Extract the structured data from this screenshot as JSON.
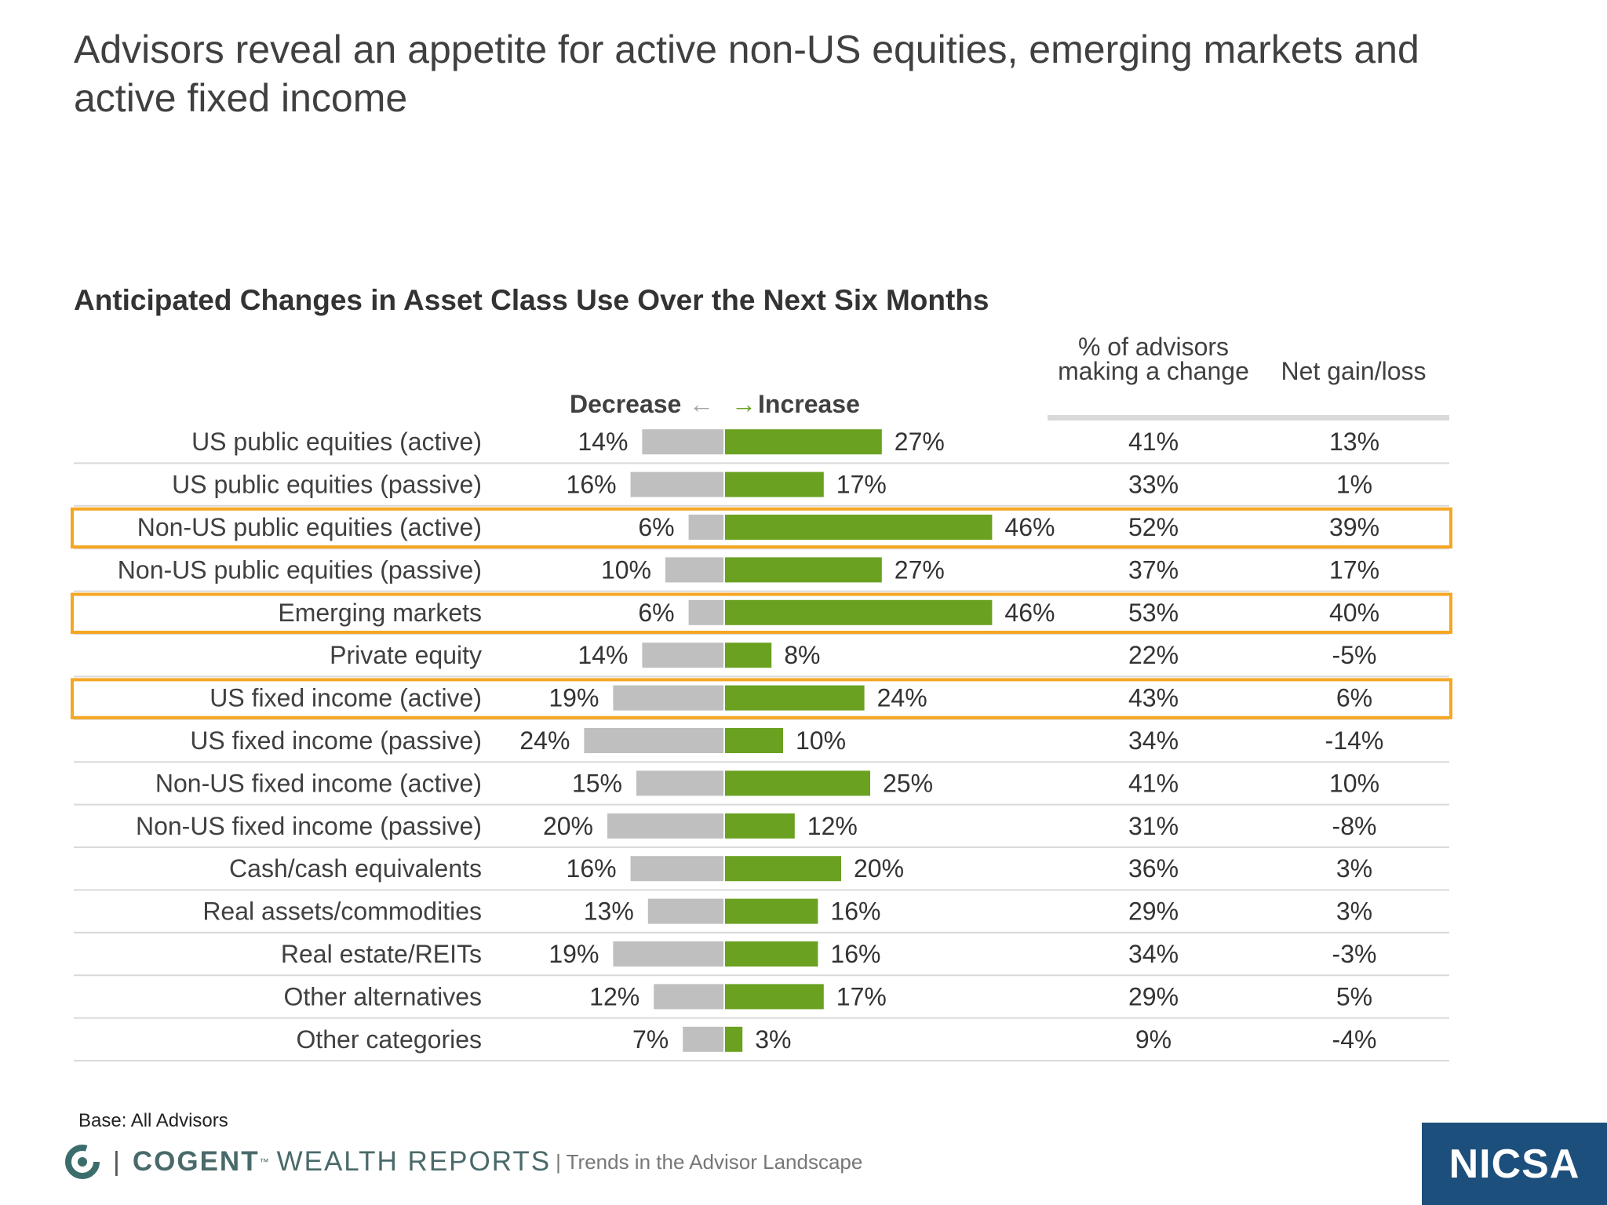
{
  "slide_title": "Advisors reveal an appetite for active non-US equities, emerging markets and active fixed income",
  "chart_data": {
    "type": "bar",
    "title": "Anticipated Changes in Asset Class Use Over the Next Six Months",
    "decrease_label": "Decrease",
    "increase_label": "Increase",
    "column_headers": {
      "change": "% of advisors making a change",
      "net": "Net gain/loss"
    },
    "categories": [
      "US public equities (active)",
      "US public equities (passive)",
      "Non-US public equities (active)",
      "Non-US public equities (passive)",
      "Emerging markets",
      "Private equity",
      "US fixed income (active)",
      "US fixed income (passive)",
      "Non-US fixed income (active)",
      "Non-US fixed income (passive)",
      "Cash/cash equivalents",
      "Real assets/commodities",
      "Real estate/REITs",
      "Other alternatives",
      "Other categories"
    ],
    "series": [
      {
        "name": "Decrease",
        "values": [
          14,
          16,
          6,
          10,
          6,
          14,
          19,
          24,
          15,
          20,
          16,
          13,
          19,
          12,
          7
        ]
      },
      {
        "name": "Increase",
        "values": [
          27,
          17,
          46,
          27,
          46,
          8,
          24,
          10,
          25,
          12,
          20,
          16,
          16,
          17,
          3
        ]
      }
    ],
    "percent_making_change": [
      41,
      33,
      52,
      37,
      53,
      22,
      43,
      34,
      41,
      31,
      36,
      29,
      34,
      29,
      9
    ],
    "net_gain_loss": [
      13,
      1,
      39,
      17,
      40,
      -5,
      6,
      -14,
      10,
      -8,
      3,
      3,
      -3,
      5,
      -4
    ],
    "highlighted": [
      "Non-US public equities (active)",
      "Emerging markets",
      "US fixed income (active)"
    ],
    "colors": {
      "decrease": "#bfbfbf",
      "increase": "#6aa121",
      "highlight": "#f5a623",
      "row_rule": "#d9d9d9"
    }
  },
  "footer": {
    "base_note": "Base: All Advisors",
    "brand_separator": "|",
    "brand_name": "COGENT",
    "brand_tm": "™",
    "brand_sub": "WEALTH REPORTS",
    "tagline": "| Trends in the Advisor Landscape",
    "logo_icon": "cogent-swirl-icon",
    "badge": "NICSA"
  }
}
